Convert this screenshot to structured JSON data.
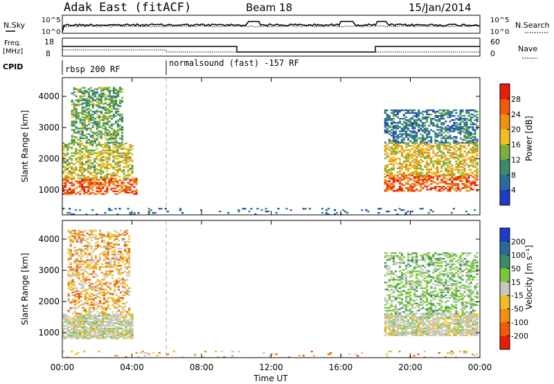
{
  "header": {
    "station": "Adak East (fitACF)",
    "beam": "Beam 18",
    "date": "15/Jan/2014"
  },
  "top_panels": {
    "noise": {
      "left_label": "N.Sky",
      "right_label": "N.Search",
      "left_ticks": [
        "10^5",
        "10^0"
      ],
      "right_ticks": [
        "10^5",
        "10^0"
      ]
    },
    "freq": {
      "label_line1": "Freq.",
      "label_line2": "[MHz]",
      "left_ticks": [
        "18",
        "8"
      ],
      "right_label": "Nave",
      "right_ticks": [
        "60",
        "0"
      ]
    },
    "cpid": {
      "label": "CPID",
      "programs": [
        {
          "name": "rbsp 200 RF",
          "start_hour": 0
        },
        {
          "name": "normalsound (fast) -157 RF",
          "start_hour": 6
        }
      ]
    }
  },
  "chart_data": [
    {
      "type": "heatmap",
      "panel": "power",
      "xlabel": "",
      "ylabel": "Slant Range [km]",
      "x_range_hours": [
        0,
        24
      ],
      "ylim_km": [
        200,
        4600
      ],
      "y_ticks": [
        "1000",
        "2000",
        "3000",
        "4000"
      ],
      "colorbar": {
        "label": "Power [dB]",
        "ticks": [
          "4",
          "8",
          "12",
          "16",
          "20",
          "24",
          "28"
        ],
        "colors": [
          "#1f3cc8",
          "#2b6b9a",
          "#3d8a6a",
          "#78b23c",
          "#f0be20",
          "#f08f10",
          "#f05a0a",
          "#e61e08"
        ],
        "vmin": 0,
        "vmax": 32
      },
      "echo_regions": [
        {
          "start_hour": 0.0,
          "end_hour": 4.3,
          "range_km": [
            850,
            1350
          ],
          "level_db": 26
        },
        {
          "start_hour": 0.0,
          "end_hour": 4.0,
          "range_km": [
            1350,
            2500
          ],
          "level_db": 16
        },
        {
          "start_hour": 0.5,
          "end_hour": 3.5,
          "range_km": [
            2500,
            4300
          ],
          "level_db": 12
        },
        {
          "start_hour": 18.5,
          "end_hour": 23.9,
          "range_km": [
            950,
            1450
          ],
          "level_db": 26
        },
        {
          "start_hour": 18.5,
          "end_hour": 23.9,
          "range_km": [
            1450,
            2500
          ],
          "level_db": 18
        },
        {
          "start_hour": 18.5,
          "end_hour": 23.9,
          "range_km": [
            2500,
            3550
          ],
          "level_db": 8
        },
        {
          "start_hour": 0.0,
          "end_hour": 24.0,
          "range_km": [
            200,
            400
          ],
          "level_db": 6
        }
      ]
    },
    {
      "type": "heatmap",
      "panel": "velocity",
      "xlabel": "Time UT",
      "ylabel": "Slant Range [km]",
      "x_range_hours": [
        0,
        24
      ],
      "x_ticks": [
        "00:00",
        "04:00",
        "08:00",
        "12:00",
        "16:00",
        "20:00",
        "00:00"
      ],
      "ylim_km": [
        200,
        4600
      ],
      "y_ticks": [
        "1000",
        "2000",
        "3000",
        "4000"
      ],
      "colorbar": {
        "label": "Velocity [m s⁻¹]",
        "ticks": [
          "200",
          "100",
          "50",
          "15",
          "-15",
          "-50",
          "-100",
          "-200"
        ],
        "colors": [
          "#1f3cc8",
          "#2b6b9a",
          "#3d8a6a",
          "#78c83c",
          "#c8c8c0",
          "#f0be20",
          "#f08f10",
          "#f05a0a",
          "#e61e08"
        ]
      },
      "echo_regions": [
        {
          "start_hour": 0.0,
          "end_hour": 4.0,
          "range_km": [
            800,
            1600
          ],
          "class": "ground scatter (~0)"
        },
        {
          "start_hour": 0.3,
          "end_hour": 3.8,
          "range_km": [
            1600,
            4300
          ],
          "class": "-50 to -15"
        },
        {
          "start_hour": 18.5,
          "end_hour": 23.9,
          "range_km": [
            900,
            1600
          ],
          "class": "ground scatter (~0)"
        },
        {
          "start_hour": 18.5,
          "end_hour": 23.9,
          "range_km": [
            1600,
            3550
          ],
          "class": "15 to 50"
        },
        {
          "start_hour": 0.0,
          "end_hour": 24.0,
          "range_km": [
            200,
            400
          ],
          "class": "-50 to -15"
        }
      ]
    }
  ]
}
